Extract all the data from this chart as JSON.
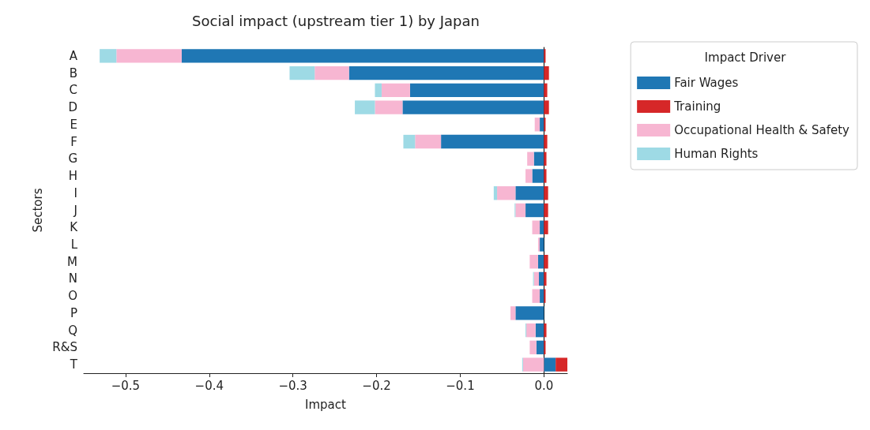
{
  "chart_data": {
    "type": "bar",
    "orientation": "horizontal",
    "stacked": true,
    "title": "Social impact (upstream tier 1) by Japan",
    "xlabel": "Impact",
    "ylabel": "Sectors",
    "legend_title": "Impact Driver",
    "legend": "top right",
    "categories": [
      "A",
      "B",
      "C",
      "D",
      "E",
      "F",
      "G",
      "H",
      "I",
      "J",
      "K",
      "L",
      "M",
      "N",
      "O",
      "P",
      "Q",
      "R&S",
      "T"
    ],
    "series": [
      {
        "name": "Fair Wages",
        "color": "#1f77b4",
        "values": [
          -0.433,
          -0.233,
          -0.16,
          -0.169,
          -0.005,
          -0.123,
          -0.012,
          -0.014,
          -0.034,
          -0.022,
          -0.005,
          -0.005,
          -0.007,
          -0.006,
          -0.005,
          -0.034,
          -0.01,
          -0.009,
          0.014
        ]
      },
      {
        "name": "Training",
        "color": "#d62728",
        "values": [
          0.002,
          0.006,
          0.004,
          0.006,
          0.002,
          0.004,
          0.003,
          0.003,
          0.005,
          0.005,
          0.005,
          0,
          0.005,
          0.003,
          0.002,
          0,
          0.003,
          0.002,
          0.014
        ]
      },
      {
        "name": "Occupational Health & Safety",
        "color": "#f7b6d2",
        "values": [
          -0.078,
          -0.041,
          -0.034,
          -0.033,
          -0.006,
          -0.031,
          -0.008,
          -0.008,
          -0.022,
          -0.012,
          -0.009,
          -0.002,
          -0.01,
          -0.006,
          -0.009,
          -0.006,
          -0.011,
          -0.008,
          -0.025
        ]
      },
      {
        "name": "Human Rights",
        "color": "#9edae5",
        "values": [
          -0.02,
          -0.03,
          -0.008,
          -0.024,
          0,
          -0.014,
          0,
          0,
          -0.004,
          -0.001,
          0,
          0,
          0,
          -0.001,
          0,
          0,
          -0.001,
          0,
          -0.001
        ]
      }
    ],
    "xlim": [
      -0.55,
      0.028
    ],
    "xticks": [
      {
        "value": -0.5,
        "label": "−0.5"
      },
      {
        "value": -0.4,
        "label": "−0.4"
      },
      {
        "value": -0.3,
        "label": "−0.3"
      },
      {
        "value": -0.2,
        "label": "−0.2"
      },
      {
        "value": -0.1,
        "label": "−0.1"
      },
      {
        "value": 0,
        "label": "0.0"
      }
    ],
    "ref_lines": [
      {
        "axis": "x",
        "value": 0,
        "color": "#000000"
      }
    ],
    "grid": false
  }
}
